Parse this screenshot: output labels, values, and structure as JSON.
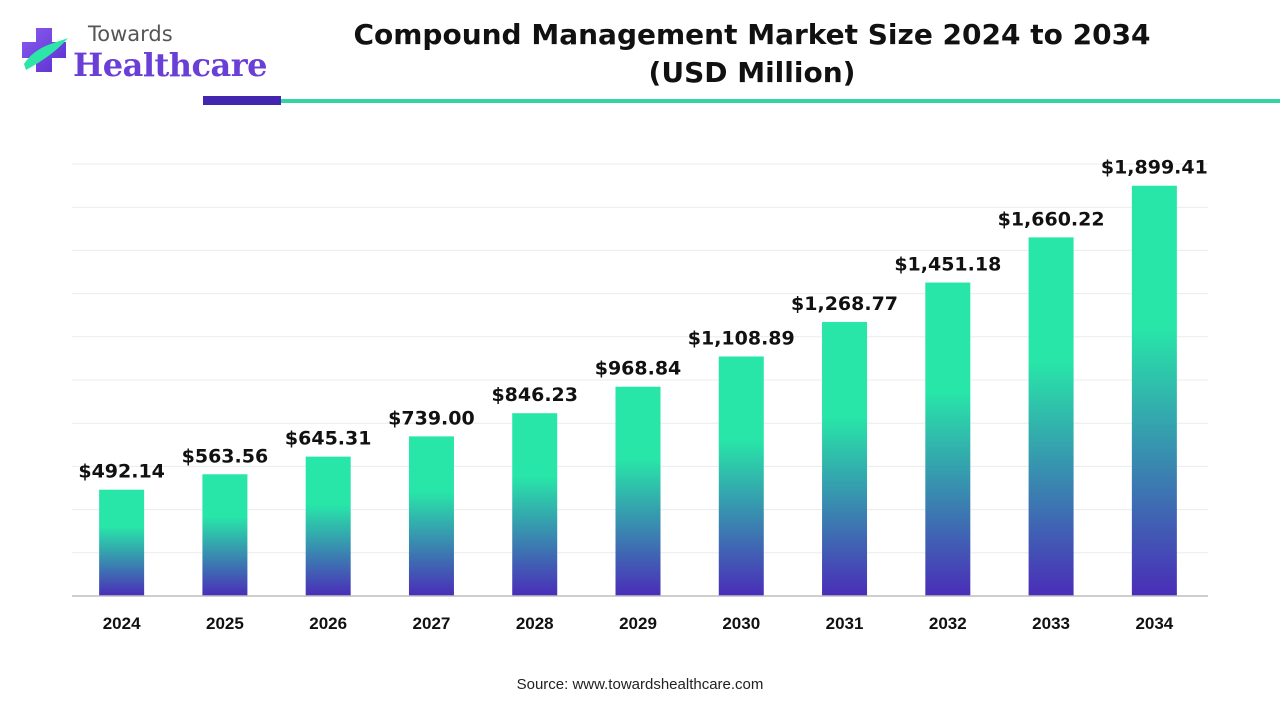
{
  "brand": {
    "small": "Towards",
    "big": "Healthcare",
    "colors": {
      "purple": "#6a3fd6",
      "teal": "#2ee5a8",
      "text_gray": "#555555"
    }
  },
  "title_line1": "Compound Management Market Size 2024 to 2034",
  "title_line2": "(USD Million)",
  "rule_colors": {
    "dark": "#4326b0",
    "teal": "#34d3a6"
  },
  "source": "Source: www.towardshealthcare.com",
  "chart_data": {
    "type": "bar",
    "categories": [
      "2024",
      "2025",
      "2026",
      "2027",
      "2028",
      "2029",
      "2030",
      "2031",
      "2032",
      "2033",
      "2034"
    ],
    "values": [
      492.14,
      563.56,
      645.31,
      739.0,
      846.23,
      968.84,
      1108.89,
      1268.77,
      1451.18,
      1660.22,
      1899.41
    ],
    "data_labels": [
      "$492.14",
      "$563.56",
      "$645.31",
      "$739.00",
      "$846.23",
      "$968.84",
      "$1,108.89",
      "$1,268.77",
      "$1,451.18",
      "$1,660.22",
      "$1,899.41"
    ],
    "title": "Compound Management Market Size 2024 to 2034 (USD Million)",
    "xlabel": "",
    "ylabel": "",
    "ylim": [
      0,
      2000
    ],
    "grid": true,
    "legend": "none",
    "bar_gradient": {
      "top": "#28e5a8",
      "bottom": "#4a2db8"
    }
  }
}
